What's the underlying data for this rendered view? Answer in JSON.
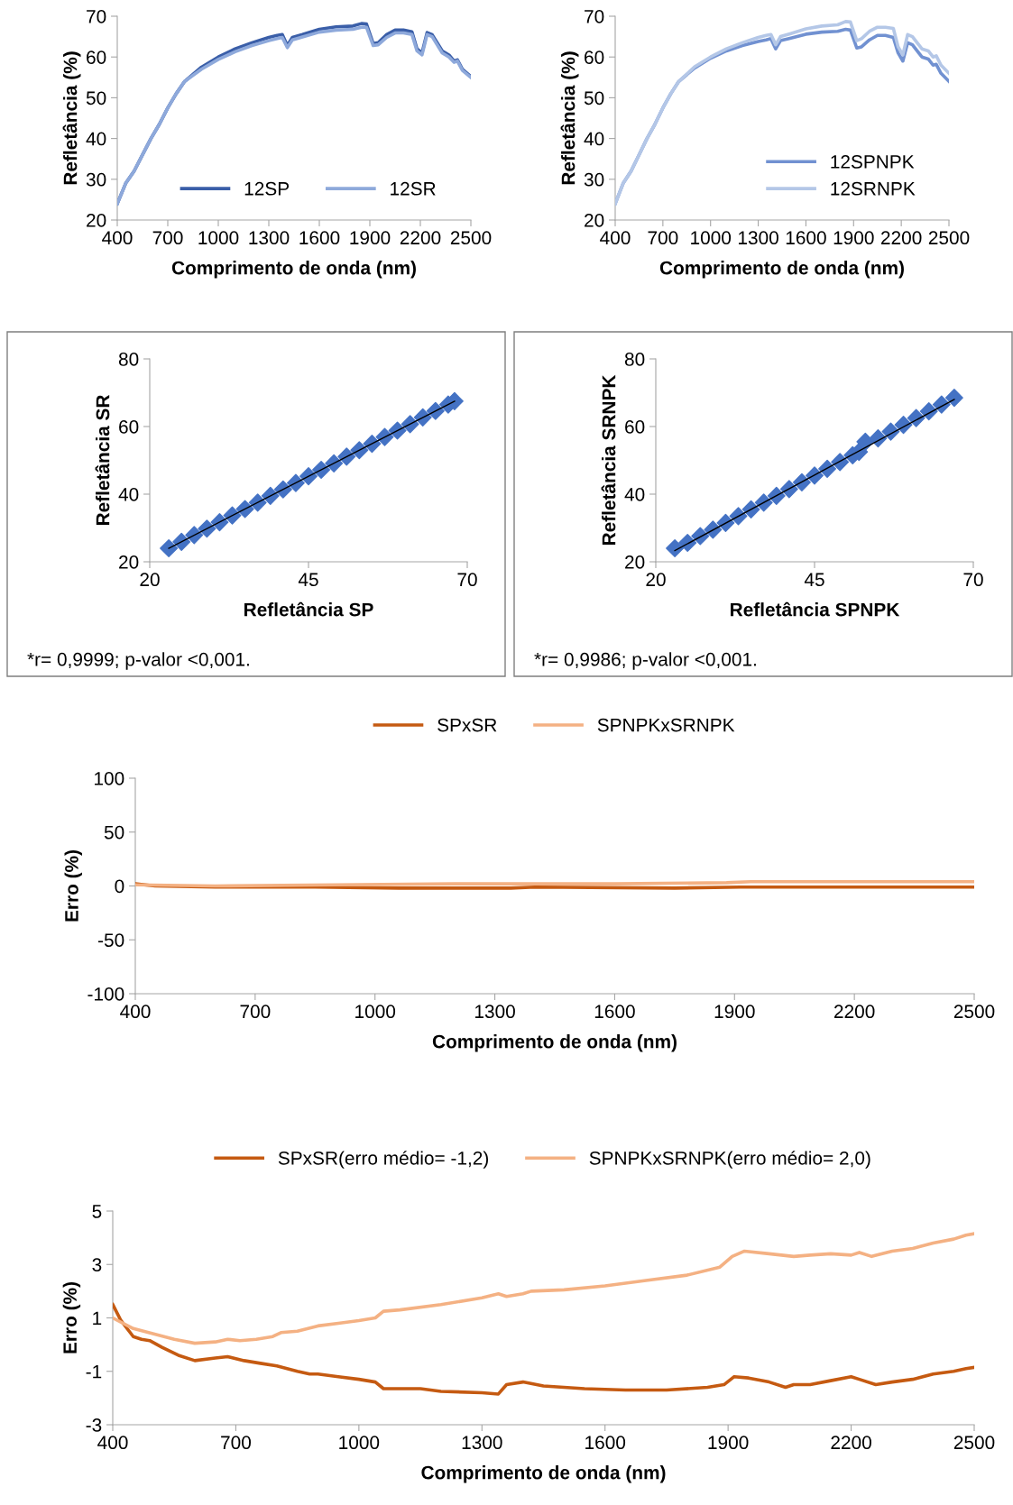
{
  "chart_data": [
    {
      "type": "line",
      "xlabel": "Comprimento de onda (nm)",
      "ylabel": "Refletância (%)",
      "xlim": [
        400,
        2500
      ],
      "xticks": [
        400,
        700,
        1000,
        1300,
        1600,
        1900,
        2200,
        2500
      ],
      "ylim": [
        20,
        70
      ],
      "yticks": [
        20,
        30,
        40,
        50,
        60,
        70
      ],
      "legend": "bottom right",
      "grid": false,
      "x": [
        400,
        450,
        500,
        550,
        600,
        650,
        700,
        750,
        800,
        900,
        1000,
        1100,
        1200,
        1300,
        1350,
        1380,
        1410,
        1440,
        1500,
        1600,
        1700,
        1800,
        1850,
        1880,
        1920,
        1950,
        2000,
        2050,
        2100,
        2150,
        2180,
        2210,
        2240,
        2270,
        2330,
        2370,
        2400,
        2420,
        2450,
        2500
      ],
      "series": [
        {
          "name": "12SP",
          "color": "#3a5ea8",
          "values": [
            24,
            29,
            32,
            36,
            40,
            43.5,
            47.5,
            51,
            54,
            57.5,
            60,
            62,
            63.5,
            64.8,
            65.3,
            65.5,
            62.8,
            64.8,
            65.5,
            66.8,
            67.4,
            67.6,
            68.2,
            68.1,
            63.3,
            63.5,
            65.5,
            66.6,
            66.6,
            66.2,
            62,
            61,
            66,
            65.5,
            61.5,
            60.5,
            59,
            59.3,
            57,
            55.2
          ]
        },
        {
          "name": "12SR",
          "color": "#8ea9db",
          "values": [
            24,
            29,
            32,
            36,
            40,
            43.5,
            47.5,
            51,
            54,
            57,
            59.4,
            61.3,
            62.8,
            64,
            64.5,
            64.8,
            62.3,
            64.2,
            64.9,
            66.1,
            66.6,
            66.8,
            67.3,
            67.3,
            62.8,
            63,
            64.8,
            65.9,
            65.9,
            65.5,
            61.5,
            60.5,
            65.5,
            65,
            61,
            60,
            58.7,
            59,
            56.7,
            55
          ]
        }
      ]
    },
    {
      "type": "line",
      "xlabel": "Comprimento de onda (nm)",
      "ylabel": "Refletância (%)",
      "xlim": [
        400,
        2500
      ],
      "xticks": [
        400,
        700,
        1000,
        1300,
        1600,
        1900,
        2200,
        2500
      ],
      "ylim": [
        20,
        70
      ],
      "yticks": [
        20,
        30,
        40,
        50,
        60,
        70
      ],
      "legend": "bottom right",
      "grid": false,
      "x": [
        400,
        450,
        500,
        550,
        600,
        650,
        700,
        750,
        800,
        900,
        1000,
        1100,
        1200,
        1300,
        1350,
        1380,
        1410,
        1440,
        1500,
        1600,
        1700,
        1800,
        1850,
        1880,
        1920,
        1950,
        2000,
        2050,
        2100,
        2150,
        2180,
        2210,
        2240,
        2270,
        2330,
        2370,
        2400,
        2420,
        2450,
        2500
      ],
      "series": [
        {
          "name": "12SPNPK",
          "color": "#7191d1",
          "values": [
            24,
            29,
            32,
            36,
            40,
            43.5,
            47.5,
            51,
            54,
            57.3,
            59.7,
            61.5,
            62.8,
            63.8,
            64.2,
            64.5,
            62,
            64,
            64.6,
            65.6,
            66.1,
            66.3,
            66.8,
            66.6,
            62.2,
            62.5,
            64.2,
            65.3,
            65.3,
            64.8,
            61,
            59,
            63.5,
            63,
            60,
            59.5,
            58,
            58.2,
            56,
            54
          ]
        },
        {
          "name": "12SRNPK",
          "color": "#b4c7e7",
          "values": [
            24,
            29,
            32,
            36,
            40,
            43.5,
            47.5,
            51,
            54,
            57.6,
            60,
            62,
            63.5,
            64.8,
            65.3,
            65.5,
            63,
            65,
            65.7,
            66.9,
            67.6,
            67.9,
            68.7,
            68.6,
            64,
            64.5,
            66.3,
            67.3,
            67.3,
            67,
            62.5,
            60.5,
            65.5,
            65,
            62,
            61.5,
            60,
            60.3,
            58,
            56
          ]
        }
      ]
    },
    {
      "type": "scatter",
      "xlabel": "Refletância SP",
      "ylabel": "Refletância SR",
      "xlim": [
        20,
        70
      ],
      "xticks": [
        20,
        45,
        70
      ],
      "ylim": [
        20,
        80
      ],
      "yticks": [
        20,
        40,
        60,
        80
      ],
      "grid": false,
      "legend": false,
      "annotations": [
        "*r= 0,9999; p-valor <0,001."
      ],
      "series": [
        {
          "color": "#4472c4",
          "marker": "diamond",
          "x": [
            23,
            25,
            27,
            29,
            31,
            33,
            35,
            37,
            39,
            41,
            43,
            45,
            47,
            49,
            51,
            53,
            55,
            57,
            59,
            61,
            63,
            65,
            67,
            68
          ],
          "values": [
            24,
            25.9,
            27.9,
            29.8,
            31.7,
            33.7,
            35.6,
            37.5,
            39.5,
            41.4,
            43.3,
            45.3,
            47.2,
            49.1,
            51.1,
            53,
            54.9,
            56.9,
            58.8,
            60.7,
            62.7,
            64.6,
            66.5,
            67.5
          ]
        },
        {
          "type": "line",
          "color": "#000000",
          "x": [
            23,
            68
          ],
          "values": [
            24,
            67.5
          ]
        }
      ]
    },
    {
      "type": "scatter",
      "xlabel": "Refletância SPNPK",
      "ylabel": "Refletância SRNPK",
      "xlim": [
        20,
        70
      ],
      "xticks": [
        20,
        45,
        70
      ],
      "ylim": [
        20,
        80
      ],
      "yticks": [
        20,
        40,
        60,
        80
      ],
      "grid": false,
      "legend": false,
      "annotations": [
        "*r= 0,9986; p-valor <0,001."
      ],
      "series": [
        {
          "color": "#4472c4",
          "marker": "diamond",
          "x": [
            23,
            25,
            27,
            29,
            31,
            33,
            35,
            37,
            39,
            41,
            43,
            45,
            47,
            49,
            51,
            52,
            53,
            55,
            57,
            59,
            61,
            63,
            65,
            67
          ],
          "values": [
            24,
            25.6,
            27.6,
            29.5,
            31.5,
            33.5,
            35.5,
            37.5,
            39.5,
            41.5,
            43.5,
            45.5,
            47.5,
            49.5,
            51.5,
            52.5,
            55.5,
            56.5,
            58.5,
            60.5,
            62.5,
            64.5,
            66.5,
            68.5
          ]
        },
        {
          "type": "line",
          "color": "#000000",
          "x": [
            23,
            67
          ],
          "values": [
            23.3,
            68
          ]
        }
      ]
    },
    {
      "type": "line",
      "xlabel": "Comprimento de onda (nm)",
      "ylabel": "Erro (%)",
      "xlim": [
        400,
        2500
      ],
      "xticks": [
        400,
        700,
        1000,
        1300,
        1600,
        1900,
        2200,
        2500
      ],
      "ylim": [
        -100,
        100
      ],
      "yticks": [
        -100,
        -50,
        0,
        50,
        100
      ],
      "legend": "top",
      "grid": false,
      "series": [
        {
          "name": "SPxSR",
          "color": "#c55a11",
          "x": [
            400,
            450,
            600,
            850,
            1060,
            1340,
            1400,
            1750,
            1915,
            2200,
            2500
          ],
          "values": [
            2,
            0,
            -1,
            -1,
            -2,
            -2,
            -1,
            -2,
            -1,
            -1,
            -1
          ]
        },
        {
          "name": "SPNPKxSRNPK",
          "color": "#f4b183",
          "x": [
            400,
            600,
            900,
            1200,
            1600,
            1880,
            1940,
            2300,
            2500
          ],
          "values": [
            1,
            0,
            1,
            2,
            2,
            3,
            4,
            4,
            4
          ]
        }
      ]
    },
    {
      "type": "line",
      "xlabel": "Comprimento de onda (nm)",
      "ylabel": "Erro (%)",
      "xlim": [
        400,
        2500
      ],
      "xticks": [
        400,
        700,
        1000,
        1300,
        1600,
        1900,
        2200,
        2500
      ],
      "ylim": [
        -3,
        5
      ],
      "yticks": [
        -3,
        -1,
        1,
        3,
        5
      ],
      "legend": "top",
      "grid": false,
      "series": [
        {
          "name": "SPxSR(erro médio= -1,2)",
          "color": "#c55a11",
          "x": [
            400,
            420,
            450,
            470,
            490,
            520,
            560,
            600,
            650,
            680,
            720,
            760,
            800,
            850,
            880,
            900,
            950,
            1000,
            1040,
            1060,
            1150,
            1200,
            1300,
            1340,
            1360,
            1400,
            1450,
            1550,
            1650,
            1750,
            1850,
            1890,
            1915,
            1950,
            2000,
            2040,
            2060,
            2100,
            2150,
            2200,
            2220,
            2260,
            2300,
            2350,
            2400,
            2450,
            2480,
            2500
          ],
          "values": [
            1.5,
            0.9,
            0.3,
            0.2,
            0.15,
            -0.1,
            -0.4,
            -0.6,
            -0.5,
            -0.45,
            -0.6,
            -0.7,
            -0.8,
            -1.0,
            -1.1,
            -1.1,
            -1.2,
            -1.3,
            -1.4,
            -1.65,
            -1.65,
            -1.75,
            -1.8,
            -1.85,
            -1.5,
            -1.4,
            -1.55,
            -1.65,
            -1.7,
            -1.7,
            -1.6,
            -1.5,
            -1.2,
            -1.25,
            -1.4,
            -1.6,
            -1.5,
            -1.5,
            -1.35,
            -1.2,
            -1.3,
            -1.5,
            -1.4,
            -1.3,
            -1.1,
            -1.0,
            -0.9,
            -0.85
          ]
        },
        {
          "name": "SPNPKxSRNPK(erro médio= 2,0)",
          "color": "#f4b183",
          "x": [
            400,
            450,
            500,
            550,
            600,
            650,
            680,
            710,
            750,
            790,
            810,
            850,
            900,
            950,
            1000,
            1040,
            1060,
            1100,
            1200,
            1300,
            1340,
            1360,
            1400,
            1420,
            1500,
            1600,
            1700,
            1800,
            1880,
            1910,
            1940,
            2000,
            2060,
            2100,
            2150,
            2200,
            2220,
            2250,
            2300,
            2350,
            2400,
            2450,
            2480,
            2500
          ],
          "values": [
            1.0,
            0.6,
            0.4,
            0.2,
            0.05,
            0.1,
            0.2,
            0.15,
            0.2,
            0.3,
            0.45,
            0.5,
            0.7,
            0.8,
            0.9,
            1.0,
            1.25,
            1.3,
            1.5,
            1.75,
            1.9,
            1.8,
            1.9,
            2.0,
            2.05,
            2.2,
            2.4,
            2.6,
            2.9,
            3.3,
            3.5,
            3.4,
            3.3,
            3.35,
            3.4,
            3.35,
            3.45,
            3.3,
            3.5,
            3.6,
            3.8,
            3.95,
            4.1,
            4.15
          ]
        }
      ]
    }
  ]
}
